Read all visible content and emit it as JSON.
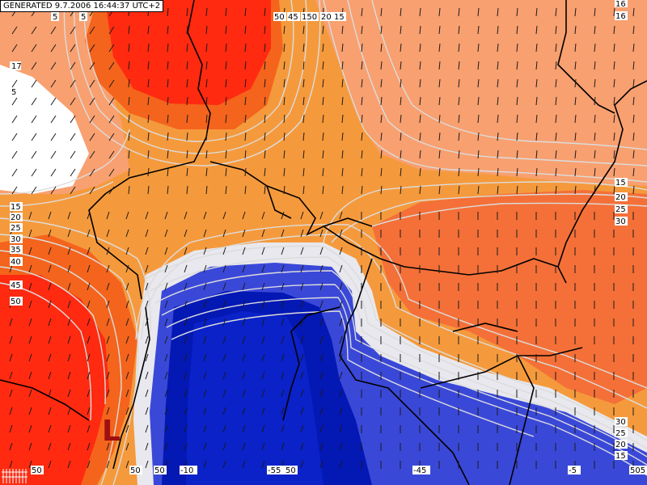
{
  "header": {
    "generated": "GENERATED 9.7.2006 16:44:37 UTC+2"
  },
  "map": {
    "low_marker": "L",
    "colors": {
      "hot_red": "#ff2a10",
      "red": "#f4641c",
      "orange_red": "#f47038",
      "orange": "#f59a3c",
      "salmon": "#f8a070",
      "white": "#ffffff",
      "blue_light": "#3a48d8",
      "blue": "#0a22c8",
      "blue_dark": "#0418b4",
      "isoline": "#dcdcdc",
      "border": "#000000"
    },
    "left_labels": [
      "17",
      "5",
      "15",
      "20",
      "25",
      "30",
      "35",
      "40",
      "45",
      "50"
    ],
    "right_labels": [
      "16",
      "16",
      "15",
      "20",
      "25",
      "30",
      "30",
      "25",
      "20",
      "15"
    ],
    "top_labels": [
      "5",
      "5",
      "50",
      "45",
      "150",
      "20",
      "15"
    ],
    "bottom_labels": [
      "50",
      "50",
      "50",
      "-10",
      "-55",
      "50",
      "-45",
      "-5",
      "505"
    ]
  }
}
